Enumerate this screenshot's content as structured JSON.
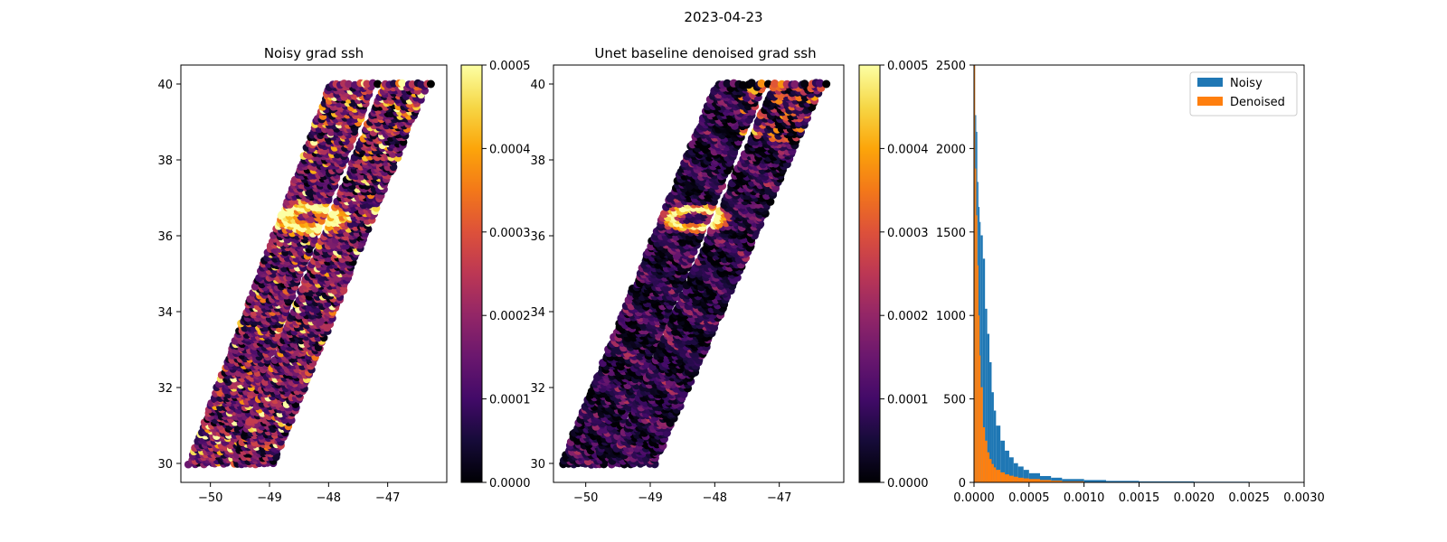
{
  "figure": {
    "suptitle": "2023-04-23"
  },
  "chart_data": [
    {
      "type": "scatter",
      "title": "Noisy grad ssh",
      "xlabel": "",
      "ylabel": "",
      "xlim": [
        -50.5,
        -46.0
      ],
      "ylim": [
        29.5,
        40.5
      ],
      "xticks": [
        -50,
        -49,
        -48,
        -47
      ],
      "yticks": [
        30,
        32,
        34,
        36,
        38,
        40
      ],
      "grid": false,
      "colormap": "inferno",
      "colorbar": {
        "min": 0.0,
        "max": 0.0005,
        "ticks": [
          "0.0000",
          "0.0001",
          "0.0002",
          "0.0003",
          "0.0004",
          "0.0005"
        ]
      },
      "swaths": [
        {
          "bottom_x": [
            -50.35,
            -49.7
          ],
          "top_x": [
            -47.95,
            -47.25
          ],
          "y": [
            30,
            40
          ]
        },
        {
          "bottom_x": [
            -49.6,
            -48.95
          ],
          "top_x": [
            -47.05,
            -46.35
          ],
          "y": [
            30,
            40
          ]
        }
      ],
      "eddy_center": [
        -48.3,
        36.5
      ],
      "noise_level": "high"
    },
    {
      "type": "scatter",
      "title": "Unet baseline denoised grad ssh",
      "xlabel": "",
      "ylabel": "",
      "xlim": [
        -50.5,
        -46.0
      ],
      "ylim": [
        29.5,
        40.5
      ],
      "xticks": [
        -50,
        -49,
        -48,
        -47
      ],
      "yticks": [
        30,
        32,
        34,
        36,
        38,
        40
      ],
      "grid": false,
      "colormap": "inferno",
      "colorbar": {
        "min": 0.0,
        "max": 0.0005,
        "ticks": [
          "0.0000",
          "0.0001",
          "0.0002",
          "0.0003",
          "0.0004",
          "0.0005"
        ]
      },
      "swaths": [
        {
          "bottom_x": [
            -50.35,
            -49.7
          ],
          "top_x": [
            -47.95,
            -47.25
          ],
          "y": [
            30,
            40
          ]
        },
        {
          "bottom_x": [
            -49.6,
            -48.95
          ],
          "top_x": [
            -47.05,
            -46.35
          ],
          "y": [
            30,
            40
          ]
        }
      ],
      "eddy_center": [
        -48.3,
        36.5
      ],
      "noise_level": "low"
    },
    {
      "type": "bar",
      "subtype": "histogram",
      "title": "",
      "xlabel": "",
      "ylabel": "",
      "xlim": [
        0,
        0.003
      ],
      "ylim": [
        0,
        2500
      ],
      "xticks": [
        "0.0000",
        "0.0005",
        "0.0010",
        "0.0015",
        "0.0020",
        "0.0025",
        "0.0030"
      ],
      "yticks": [
        "0",
        "500",
        "1000",
        "1500",
        "2000",
        "2500"
      ],
      "legend": "top-right",
      "series": [
        {
          "name": "Noisy",
          "color": "#1f77b4",
          "bin_edges": [
            0,
            1e-05,
            2e-05,
            3e-05,
            4e-05,
            5e-05,
            6e-05,
            8e-05,
            0.0001,
            0.00012,
            0.00014,
            0.00016,
            0.00018,
            0.0002,
            0.00024,
            0.00028,
            0.00032,
            0.00036,
            0.0004,
            0.00045,
            0.0005,
            0.0006,
            0.0007,
            0.0008,
            0.001,
            0.0012,
            0.0015,
            0.002,
            0.0025,
            0.003
          ],
          "counts": [
            2500,
            2200,
            2100,
            1800,
            1650,
            1560,
            1480,
            1340,
            1040,
            890,
            720,
            540,
            430,
            340,
            250,
            190,
            150,
            115,
            95,
            75,
            55,
            38,
            28,
            20,
            14,
            9,
            6,
            4,
            2
          ]
        },
        {
          "name": "Denoised",
          "color": "#ff7f0e",
          "bin_edges": [
            0,
            1e-05,
            2e-05,
            3e-05,
            4e-05,
            5e-05,
            6e-05,
            8e-05,
            0.0001,
            0.00012,
            0.00014,
            0.00016,
            0.00018,
            0.0002,
            0.00024,
            0.00028,
            0.00032,
            0.00036,
            0.0004,
            0.00045,
            0.0005,
            0.0006,
            0.0007,
            0.0008,
            0.001
          ],
          "counts": [
            2500,
            1880,
            1600,
            1300,
            1000,
            760,
            570,
            330,
            250,
            180,
            140,
            110,
            90,
            75,
            60,
            48,
            40,
            34,
            28,
            24,
            20,
            14,
            10,
            6
          ]
        }
      ]
    }
  ]
}
